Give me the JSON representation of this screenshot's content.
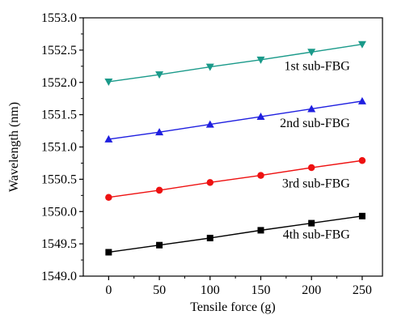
{
  "chart_data": {
    "type": "line",
    "title": "",
    "xlabel": "Tensile force (g)",
    "ylabel": "Wavelength (nm)",
    "xlim": [
      -25,
      270
    ],
    "ylim": [
      1549.0,
      1553.0
    ],
    "xticks": [
      0,
      50,
      100,
      150,
      200,
      250
    ],
    "xtick_labels": [
      "0",
      "50",
      "100",
      "150",
      "200",
      "250"
    ],
    "yticks": [
      1549.0,
      1549.5,
      1550.0,
      1550.5,
      1551.0,
      1551.5,
      1552.0,
      1552.5,
      1553.0
    ],
    "ytick_labels": [
      "1549.0",
      "1549.5",
      "1550.0",
      "1550.5",
      "1551.0",
      "1551.5",
      "1552.0",
      "1552.5",
      "1553.0"
    ],
    "grid": false,
    "legend": "none",
    "x": [
      0,
      50,
      100,
      150,
      200,
      250
    ],
    "series": [
      {
        "name": "1st sub-FBG",
        "label": "1st sub-FBG",
        "label_at": [
          238,
          1552.19
        ],
        "color": "#1a9a8a",
        "marker": "triangle-down",
        "values": [
          1552.01,
          1552.12,
          1552.24,
          1552.35,
          1552.47,
          1552.59
        ]
      },
      {
        "name": "2nd sub-FBG",
        "label": "2nd sub-FBG",
        "label_at": [
          238,
          1551.31
        ],
        "color": "#1f1fe0",
        "marker": "triangle-up",
        "values": [
          1551.12,
          1551.23,
          1551.35,
          1551.47,
          1551.59,
          1551.71
        ]
      },
      {
        "name": "3rd sub-FBG",
        "label": "3rd sub-FBG",
        "label_at": [
          238,
          1550.37
        ],
        "color": "#ee1111",
        "marker": "circle",
        "values": [
          1550.22,
          1550.33,
          1550.45,
          1550.56,
          1550.68,
          1550.79
        ]
      },
      {
        "name": "4th sub-FBG",
        "label": "4th sub-FBG",
        "label_at": [
          238,
          1549.58
        ],
        "color": "#000000",
        "marker": "square",
        "values": [
          1549.37,
          1549.48,
          1549.59,
          1549.71,
          1549.82,
          1549.93
        ]
      }
    ]
  }
}
